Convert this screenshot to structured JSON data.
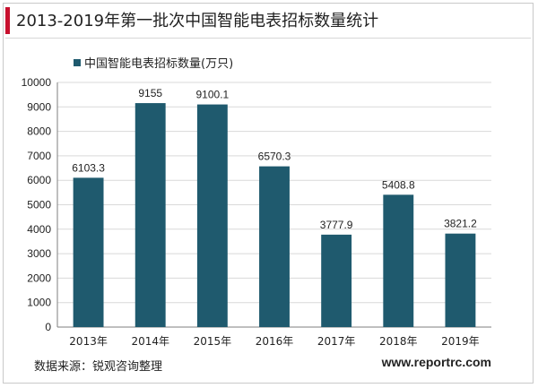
{
  "page": {
    "title": "2013-2019年第一批次中国智能电表招标数量统计",
    "source_label": "数据来源：锐观咨询整理",
    "website": "www.reportrc.com"
  },
  "chart_data": {
    "type": "bar",
    "title": "2013-2019年第一批次中国智能电表招标数量统计",
    "xlabel": "",
    "ylabel": "",
    "categories": [
      "2013年",
      "2014年",
      "2015年",
      "2016年",
      "2017年",
      "2018年",
      "2019年"
    ],
    "series": [
      {
        "name": "中国智能电表招标数量(万只)",
        "values": [
          6103.3,
          9155,
          9100.1,
          6570.3,
          3777.9,
          5408.8,
          3821.2
        ],
        "data_labels": [
          "6103.3",
          "9155",
          "9100.1",
          "6570.3",
          "3777.9",
          "5408.8",
          "3821.2"
        ]
      }
    ],
    "ylim": [
      0,
      10000
    ],
    "yticks": [
      0,
      1000,
      2000,
      3000,
      4000,
      5000,
      6000,
      7000,
      8000,
      9000,
      10000
    ],
    "grid": true,
    "legend_position": "top-left",
    "colors": {
      "bar": "#1f5a6e",
      "grid": "#d9d9d9",
      "axis": "#7f7f7f"
    }
  }
}
